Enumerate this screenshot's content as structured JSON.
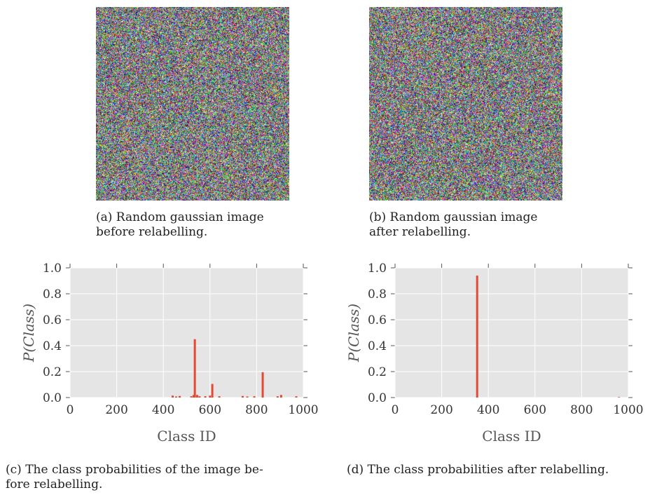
{
  "panels": {
    "a": {
      "caption_line1": "(a) Random gaussian image",
      "caption_line2": "before relabelling."
    },
    "b": {
      "caption_line1": "(b) Random gaussian image",
      "caption_line2": "after relabelling."
    },
    "c": {
      "caption_line1": "(c) The class probabilities of the image be-",
      "caption_line2": "fore relabelling."
    },
    "d": {
      "caption_line1": "(d) The class probabilities after relabelling."
    }
  },
  "colors": {
    "bar": "#e24a33",
    "plot_bg": "#e5e5e5",
    "grid": "#ffffff"
  },
  "chart_data": [
    {
      "type": "bar",
      "xlabel": "Class ID",
      "ylabel": "P(Class)",
      "xlim": [
        0,
        1000
      ],
      "ylim": [
        0,
        1.0
      ],
      "xticks": [
        "0",
        "200",
        "400",
        "600",
        "800",
        "1000"
      ],
      "yticks": [
        "0.0",
        "0.2",
        "0.4",
        "0.6",
        "0.8",
        "1.0"
      ],
      "grid": true,
      "x": [
        440,
        455,
        470,
        520,
        530,
        535,
        545,
        555,
        580,
        600,
        610,
        640,
        740,
        760,
        790,
        826,
        890,
        905,
        970
      ],
      "values": [
        0.015,
        0.008,
        0.012,
        0.01,
        0.02,
        0.45,
        0.02,
        0.01,
        0.01,
        0.015,
        0.105,
        0.01,
        0.012,
        0.008,
        0.01,
        0.195,
        0.01,
        0.02,
        0.01
      ]
    },
    {
      "type": "bar",
      "xlabel": "Class ID",
      "ylabel": "P(Class)",
      "xlim": [
        0,
        1000
      ],
      "ylim": [
        0,
        1.0
      ],
      "xticks": [
        "0",
        "200",
        "400",
        "600",
        "800",
        "1000"
      ],
      "yticks": [
        "0.0",
        "0.2",
        "0.4",
        "0.6",
        "0.8",
        "1.0"
      ],
      "grid": true,
      "x": [
        352,
        960
      ],
      "values": [
        0.94,
        0.004
      ]
    }
  ]
}
